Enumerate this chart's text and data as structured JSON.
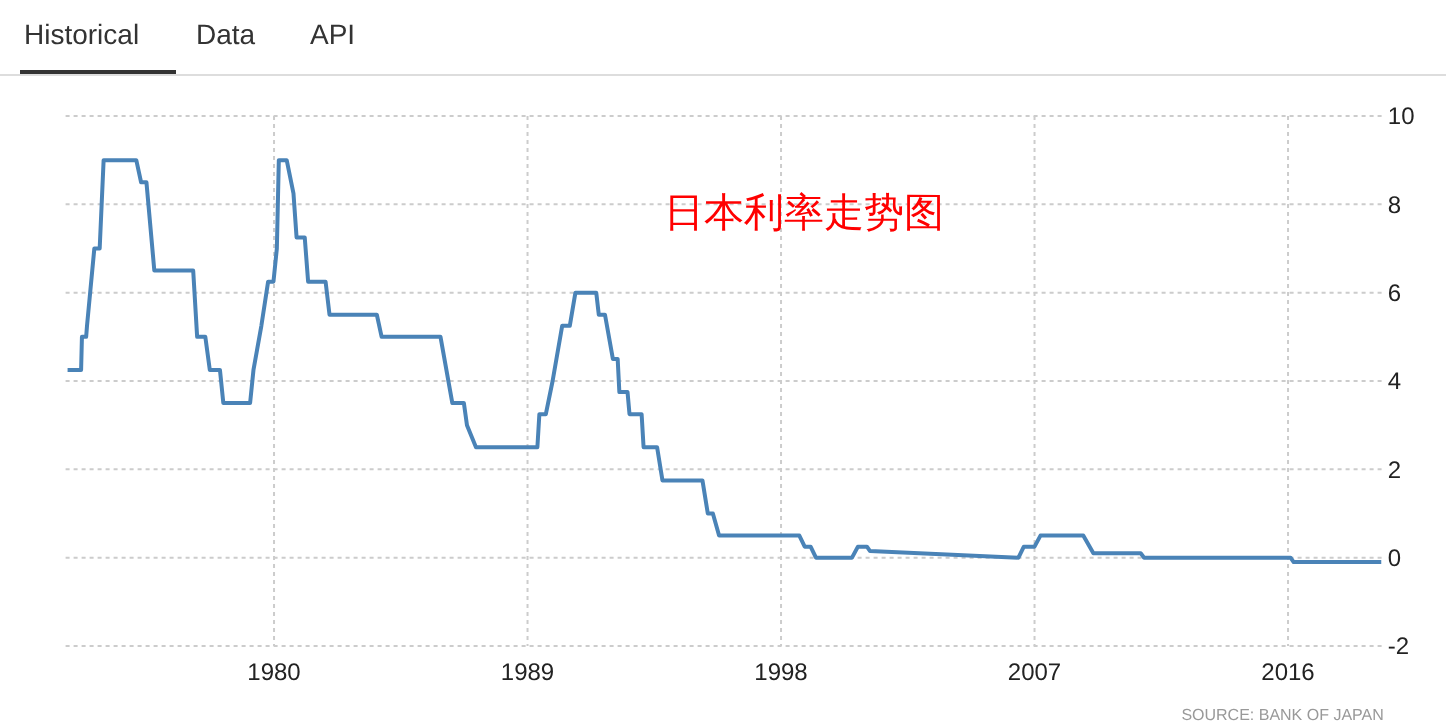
{
  "chart_data": {
    "type": "line",
    "title": "日本利率走势图",
    "annotations": [
      "Historical",
      "Data",
      "API",
      "SOURCE: BANK OF JAPAN"
    ],
    "series": [
      {
        "color": "#4a83b7",
        "x": [
          1972.67,
          1973.15,
          1973.18,
          1973.33,
          1973.36,
          1973.62,
          1973.81,
          1973.95,
          1975.11,
          1975.28,
          1975.47,
          1975.75,
          1977.13,
          1977.27,
          1977.56,
          1977.72,
          1978.08,
          1978.2,
          1979.15,
          1979.27,
          1979.55,
          1979.79,
          1979.98,
          1980.1,
          1980.17,
          1980.45,
          1980.69,
          1980.8,
          1981.09,
          1981.21,
          1981.83,
          1981.97,
          1983.65,
          1983.82,
          1985.91,
          1986.33,
          1986.74,
          1986.85,
          1987.17,
          1989.35,
          1989.42,
          1989.65,
          1989.89,
          1990.23,
          1990.5,
          1990.7,
          1991.44,
          1991.53,
          1991.75,
          1992.03,
          1992.2,
          1992.26,
          1992.55,
          1992.62,
          1993.05,
          1993.12,
          1993.6,
          1993.79,
          1995.21,
          1995.4,
          1995.58,
          1995.8,
          1998.65,
          1998.84,
          1999.05,
          1999.24,
          2000.52,
          2000.73,
          2001.05,
          2001.16,
          2006.43,
          2006.62,
          2007.0,
          2007.21,
          2008.73,
          2009.09,
          2010.77,
          2010.89,
          2016.09,
          2016.2,
          2019.31
        ],
        "values": [
          4.25,
          4.25,
          5,
          5,
          5.25,
          7,
          7,
          9,
          9,
          8.5,
          8.5,
          6.5,
          6.5,
          5,
          5,
          4.25,
          4.25,
          3.5,
          3.5,
          4.25,
          5.25,
          6.25,
          6.25,
          7,
          9,
          9,
          8.25,
          7.25,
          7.25,
          6.25,
          6.25,
          5.5,
          5.5,
          5,
          5,
          3.5,
          3.5,
          3,
          2.5,
          2.5,
          3.25,
          3.25,
          4,
          5.25,
          5.25,
          6,
          6,
          5.5,
          5.5,
          4.5,
          4.5,
          3.75,
          3.75,
          3.25,
          3.25,
          2.5,
          2.5,
          1.75,
          1.75,
          1,
          1,
          0.5,
          0.5,
          0.25,
          0.25,
          0,
          0,
          0.25,
          0.25,
          0.15,
          0,
          0.25,
          0.25,
          0.5,
          0.5,
          0.1,
          0.1,
          0,
          0,
          -0.1,
          -0.1
        ]
      }
    ],
    "xlim": [
      1972.6,
      2019.4
    ],
    "xticks": [
      1980,
      1989,
      1998,
      2007,
      2016
    ],
    "ylim": [
      -2,
      10
    ],
    "yticks": [
      -2,
      0,
      2,
      4,
      6,
      8,
      10
    ],
    "grid": true,
    "line_style": "solid",
    "marker": "none"
  }
}
